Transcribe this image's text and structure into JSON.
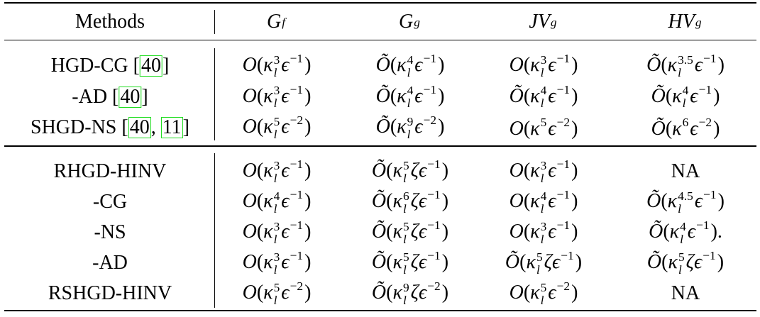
{
  "header": [
    [
      "Methods"
    ],
    [
      {
        "t": "G",
        "sub": "f"
      }
    ],
    [
      {
        "t": "G",
        "sub": "g"
      }
    ],
    [
      {
        "t": "JV",
        "sub": "g"
      }
    ],
    [
      {
        "t": "HV",
        "sub": "g"
      }
    ]
  ],
  "groups": [
    {
      "rows": [
        {
          "method": [
            "HGD-CG [",
            {
              "ref": "40"
            },
            "]"
          ],
          "cells": [
            [
              {
                "t": "O"
              },
              "(",
              {
                "t": "κ",
                "sub": "l",
                "sup": "3"
              },
              {
                "t": "ϵ",
                "sup": "−1"
              },
              ")"
            ],
            [
              {
                "t": "Õ"
              },
              "(",
              {
                "t": "κ",
                "sub": "l",
                "sup": "4"
              },
              {
                "t": "ϵ",
                "sup": "−1"
              },
              ")"
            ],
            [
              {
                "t": "O"
              },
              "(",
              {
                "t": "κ",
                "sub": "l",
                "sup": "3"
              },
              {
                "t": "ϵ",
                "sup": "−1"
              },
              ")"
            ],
            [
              {
                "t": "Õ"
              },
              "(",
              {
                "t": "κ",
                "sub": "l",
                "sup": "3.5"
              },
              {
                "t": "ϵ",
                "sup": "−1"
              },
              ")"
            ]
          ]
        },
        {
          "method": [
            "-AD [",
            {
              "ref": "40"
            },
            "]"
          ],
          "cells": [
            [
              {
                "t": "O"
              },
              "(",
              {
                "t": "κ",
                "sub": "l",
                "sup": "3"
              },
              {
                "t": "ϵ",
                "sup": "−1"
              },
              ")"
            ],
            [
              {
                "t": "Õ"
              },
              "(",
              {
                "t": "κ",
                "sub": "l",
                "sup": "4"
              },
              {
                "t": "ϵ",
                "sup": "−1"
              },
              ")"
            ],
            [
              {
                "t": "Õ"
              },
              "(",
              {
                "t": "κ",
                "sub": "l",
                "sup": "4"
              },
              {
                "t": "ϵ",
                "sup": "−1"
              },
              ")"
            ],
            [
              {
                "t": "Õ"
              },
              "(",
              {
                "t": "κ",
                "sub": "l",
                "sup": "4"
              },
              {
                "t": "ϵ",
                "sup": "−1"
              },
              ")"
            ]
          ]
        },
        {
          "method": [
            "SHGD-NS [",
            {
              "ref": "40"
            },
            ", ",
            {
              "ref": "11"
            },
            "]"
          ],
          "cells": [
            [
              {
                "t": "O"
              },
              "(",
              {
                "t": "κ",
                "sub": "l",
                "sup": "5"
              },
              {
                "t": "ϵ",
                "sup": "−2"
              },
              ")"
            ],
            [
              {
                "t": "Õ"
              },
              "(",
              {
                "t": "κ",
                "sub": "l",
                "sup": "9"
              },
              {
                "t": "ϵ",
                "sup": "−2"
              },
              ")"
            ],
            [
              {
                "t": "O"
              },
              "(",
              {
                "t": "κ",
                "sup": "5"
              },
              {
                "t": "ϵ",
                "sup": "−2"
              },
              ")"
            ],
            [
              {
                "t": "Õ"
              },
              "(",
              {
                "t": "κ",
                "sup": "6"
              },
              {
                "t": "ϵ",
                "sup": "−2"
              },
              ")"
            ]
          ]
        }
      ]
    },
    {
      "rows": [
        {
          "method": [
            "RHGD-HINV"
          ],
          "cells": [
            [
              {
                "t": "O"
              },
              "(",
              {
                "t": "κ",
                "sub": "l",
                "sup": "3"
              },
              {
                "t": "ϵ",
                "sup": "−1"
              },
              ")"
            ],
            [
              {
                "t": "Õ"
              },
              "(",
              {
                "t": "κ",
                "sub": "l",
                "sup": "5"
              },
              {
                "t": "ζϵ",
                "sup": "−1"
              },
              ")"
            ],
            [
              {
                "t": "O"
              },
              "(",
              {
                "t": "κ",
                "sub": "l",
                "sup": "3"
              },
              {
                "t": "ϵ",
                "sup": "−1"
              },
              ")"
            ],
            [
              "NA"
            ]
          ]
        },
        {
          "method": [
            "-CG"
          ],
          "cells": [
            [
              {
                "t": "O"
              },
              "(",
              {
                "t": "κ",
                "sub": "l",
                "sup": "4"
              },
              {
                "t": "ϵ",
                "sup": "−1"
              },
              ")"
            ],
            [
              {
                "t": "Õ"
              },
              "(",
              {
                "t": "κ",
                "sub": "l",
                "sup": "6"
              },
              {
                "t": "ζϵ",
                "sup": "−1"
              },
              ")"
            ],
            [
              {
                "t": "O"
              },
              "(",
              {
                "t": "κ",
                "sub": "l",
                "sup": "4"
              },
              {
                "t": "ϵ",
                "sup": "−1"
              },
              ")"
            ],
            [
              {
                "t": "Õ"
              },
              "(",
              {
                "t": "κ",
                "sub": "l",
                "sup": "4.5"
              },
              {
                "t": "ϵ",
                "sup": "−1"
              },
              ")"
            ]
          ]
        },
        {
          "method": [
            "-NS"
          ],
          "cells": [
            [
              {
                "t": "O"
              },
              "(",
              {
                "t": "κ",
                "sub": "l",
                "sup": "3"
              },
              {
                "t": "ϵ",
                "sup": "−1"
              },
              ")"
            ],
            [
              {
                "t": "Õ"
              },
              "(",
              {
                "t": "κ",
                "sub": "l",
                "sup": "5"
              },
              {
                "t": "ζϵ",
                "sup": "−1"
              },
              ")"
            ],
            [
              {
                "t": "O"
              },
              "(",
              {
                "t": "κ",
                "sub": "l",
                "sup": "3"
              },
              {
                "t": "ϵ",
                "sup": "−1"
              },
              ")"
            ],
            [
              {
                "t": "Õ"
              },
              "(",
              {
                "t": "κ",
                "sub": "l",
                "sup": "4"
              },
              {
                "t": "ϵ",
                "sup": "−1"
              },
              ")."
            ]
          ]
        },
        {
          "method": [
            "-AD"
          ],
          "cells": [
            [
              {
                "t": "O"
              },
              "(",
              {
                "t": "κ",
                "sub": "l",
                "sup": "3"
              },
              {
                "t": "ϵ",
                "sup": "−1"
              },
              ")"
            ],
            [
              {
                "t": "Õ"
              },
              "(",
              {
                "t": "κ",
                "sub": "l",
                "sup": "5"
              },
              {
                "t": "ζϵ",
                "sup": "−1"
              },
              ")"
            ],
            [
              {
                "t": "Õ"
              },
              "(",
              {
                "t": "κ",
                "sub": "l",
                "sup": "5"
              },
              {
                "t": "ζϵ",
                "sup": "−1"
              },
              ")"
            ],
            [
              {
                "t": "Õ"
              },
              "(",
              {
                "t": "κ",
                "sub": "l",
                "sup": "5"
              },
              {
                "t": "ζϵ",
                "sup": "−1"
              },
              ")"
            ]
          ]
        },
        {
          "method": [
            "RSHGD-HINV"
          ],
          "cells": [
            [
              {
                "t": "O"
              },
              "(",
              {
                "t": "κ",
                "sub": "l",
                "sup": "5"
              },
              {
                "t": "ϵ",
                "sup": "−2"
              },
              ")"
            ],
            [
              {
                "t": "Õ"
              },
              "(",
              {
                "t": "κ",
                "sub": "l",
                "sup": "9"
              },
              {
                "t": "ζϵ",
                "sup": "−2"
              },
              ")"
            ],
            [
              {
                "t": "O"
              },
              "(",
              {
                "t": "κ",
                "sub": "l",
                "sup": "5"
              },
              {
                "t": "ϵ",
                "sup": "−2"
              },
              ")"
            ],
            [
              "NA"
            ]
          ]
        }
      ]
    }
  ]
}
